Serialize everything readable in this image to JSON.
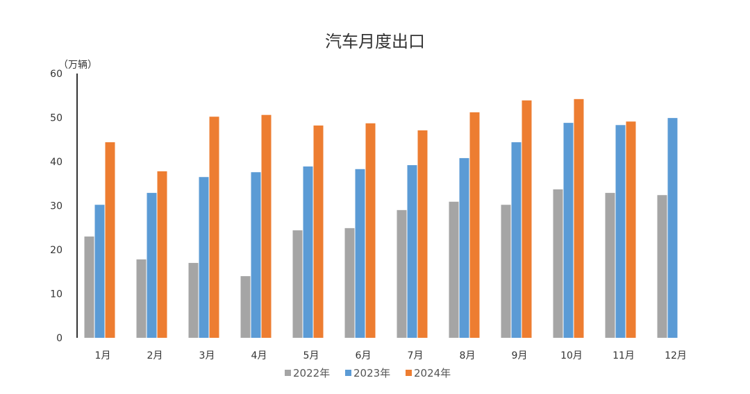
{
  "chart_data": {
    "type": "bar",
    "title": "汽车月度出口",
    "ylabel": "（万辆）",
    "xlabel": "",
    "ylim": [
      0,
      60
    ],
    "yticks": [
      0,
      10,
      20,
      30,
      40,
      50,
      60
    ],
    "grid": false,
    "legend_position": "bottom",
    "categories": [
      "1月",
      "2月",
      "3月",
      "4月",
      "5月",
      "6月",
      "7月",
      "8月",
      "9月",
      "10月",
      "11月",
      "12月"
    ],
    "series": [
      {
        "name": "2022年",
        "color": "#a5a5a5",
        "values": [
          23.0,
          17.8,
          17.0,
          14.0,
          24.4,
          24.9,
          29.0,
          30.9,
          30.2,
          33.7,
          32.9,
          32.4
        ]
      },
      {
        "name": "2023年",
        "color": "#5b9bd5",
        "values": [
          30.2,
          32.9,
          36.5,
          37.6,
          38.9,
          38.3,
          39.2,
          40.8,
          44.4,
          48.8,
          48.3,
          49.9
        ]
      },
      {
        "name": "2024年",
        "color": "#ed7d31",
        "values": [
          44.4,
          37.8,
          50.2,
          50.6,
          48.2,
          48.7,
          47.1,
          51.2,
          53.9,
          54.2,
          49.1,
          null
        ]
      }
    ]
  }
}
